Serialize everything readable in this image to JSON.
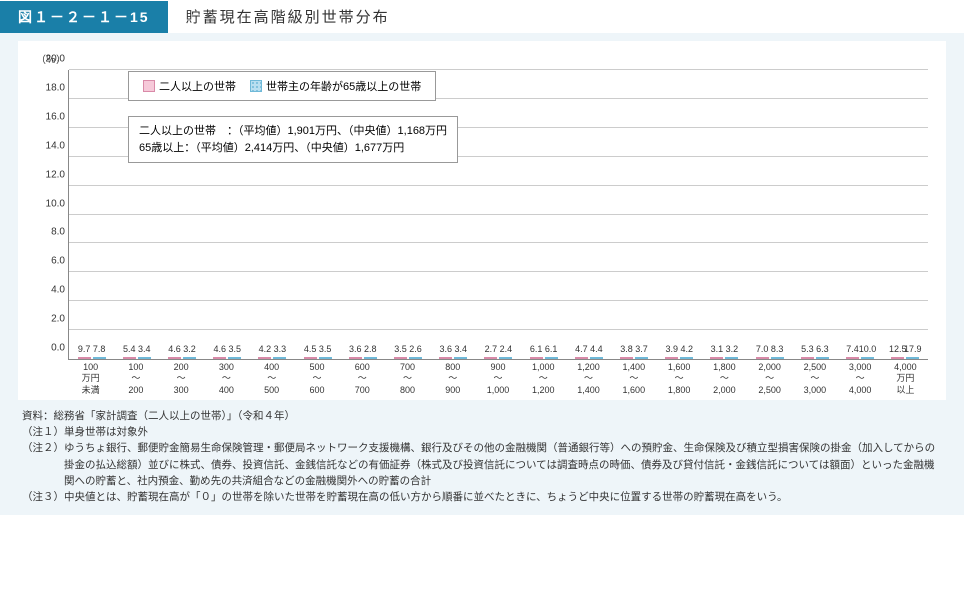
{
  "header": {
    "figure_number": "図１－２－１－15",
    "title": "貯蓄現在高階級別世帯分布"
  },
  "chart": {
    "type": "bar",
    "y_unit": "（％）",
    "ylim": [
      0,
      20
    ],
    "ytick_step": 2,
    "yticks": [
      "0.0",
      "2.0",
      "4.0",
      "6.0",
      "8.0",
      "10.0",
      "12.0",
      "14.0",
      "16.0",
      "18.0",
      "20.0"
    ],
    "colors": {
      "series1_fill": "#f6c9d9",
      "series1_border": "#d98aa8",
      "series2_fill": "#b9dff0",
      "series2_border": "#6fb9d8",
      "grid": "#cccccc",
      "axis": "#888888",
      "background": "#ffffff",
      "panel_bg": "#eef5f9",
      "header_bg": "#1a7fa8"
    },
    "legend": {
      "series1": "二人以上の世帯",
      "series2": "世帯主の年齢が65歳以上の世帯"
    },
    "stats": {
      "line1": "二人以上の世帯　：（平均値）1,901万円、（中央値）1,168万円",
      "line2": "65歳以上：（平均値）2,414万円、（中央値）1,677万円"
    },
    "categories": [
      "100\n万円\n未満",
      "100\n～\n200",
      "200\n～\n300",
      "300\n～\n400",
      "400\n～\n500",
      "500\n～\n600",
      "600\n～\n700",
      "700\n～\n800",
      "800\n～\n900",
      "900\n～\n1,000",
      "1,000\n～\n1,200",
      "1,200\n～\n1,400",
      "1,400\n～\n1,600",
      "1,600\n～\n1,800",
      "1,800\n～\n2,000",
      "2,000\n～\n2,500",
      "2,500\n～\n3,000",
      "3,000\n～\n4,000",
      "4,000\n万円\n以上"
    ],
    "series1": [
      9.7,
      5.4,
      4.6,
      4.6,
      4.2,
      4.5,
      3.6,
      3.5,
      3.6,
      2.7,
      6.1,
      4.7,
      3.8,
      3.9,
      3.1,
      7.0,
      5.3,
      7.4,
      12.5
    ],
    "series2": [
      7.8,
      3.4,
      3.2,
      3.5,
      3.3,
      3.5,
      2.8,
      2.6,
      3.4,
      2.4,
      6.1,
      4.4,
      3.7,
      4.2,
      3.2,
      8.3,
      6.3,
      10.0,
      17.9
    ]
  },
  "notes": {
    "source_tag": "資料：",
    "source": "総務省「家計調査（二人以上の世帯）」（令和４年）",
    "n1_tag": "（注１）",
    "n1": "単身世帯は対象外",
    "n2_tag": "（注２）",
    "n2": "ゆうちょ銀行、郵便貯金簡易生命保険管理・郵便局ネットワーク支援機構、銀行及びその他の金融機関（普通銀行等）への預貯金、生命保険及び積立型損害保険の掛金（加入してからの掛金の払込総額）並びに株式、債券、投資信託、金銭信託などの有価証券（株式及び投資信託については調査時点の時価、債券及び貸付信託・金銭信託については額面）といった金融機関への貯蓄と、社内預金、勤め先の共済組合などの金融機関外への貯蓄の合計",
    "n3_tag": "（注３）",
    "n3": "中央値とは、貯蓄現在高が「０」の世帯を除いた世帯を貯蓄現在高の低い方から順番に並べたときに、ちょうど中央に位置する世帯の貯蓄現在高をいう。"
  }
}
